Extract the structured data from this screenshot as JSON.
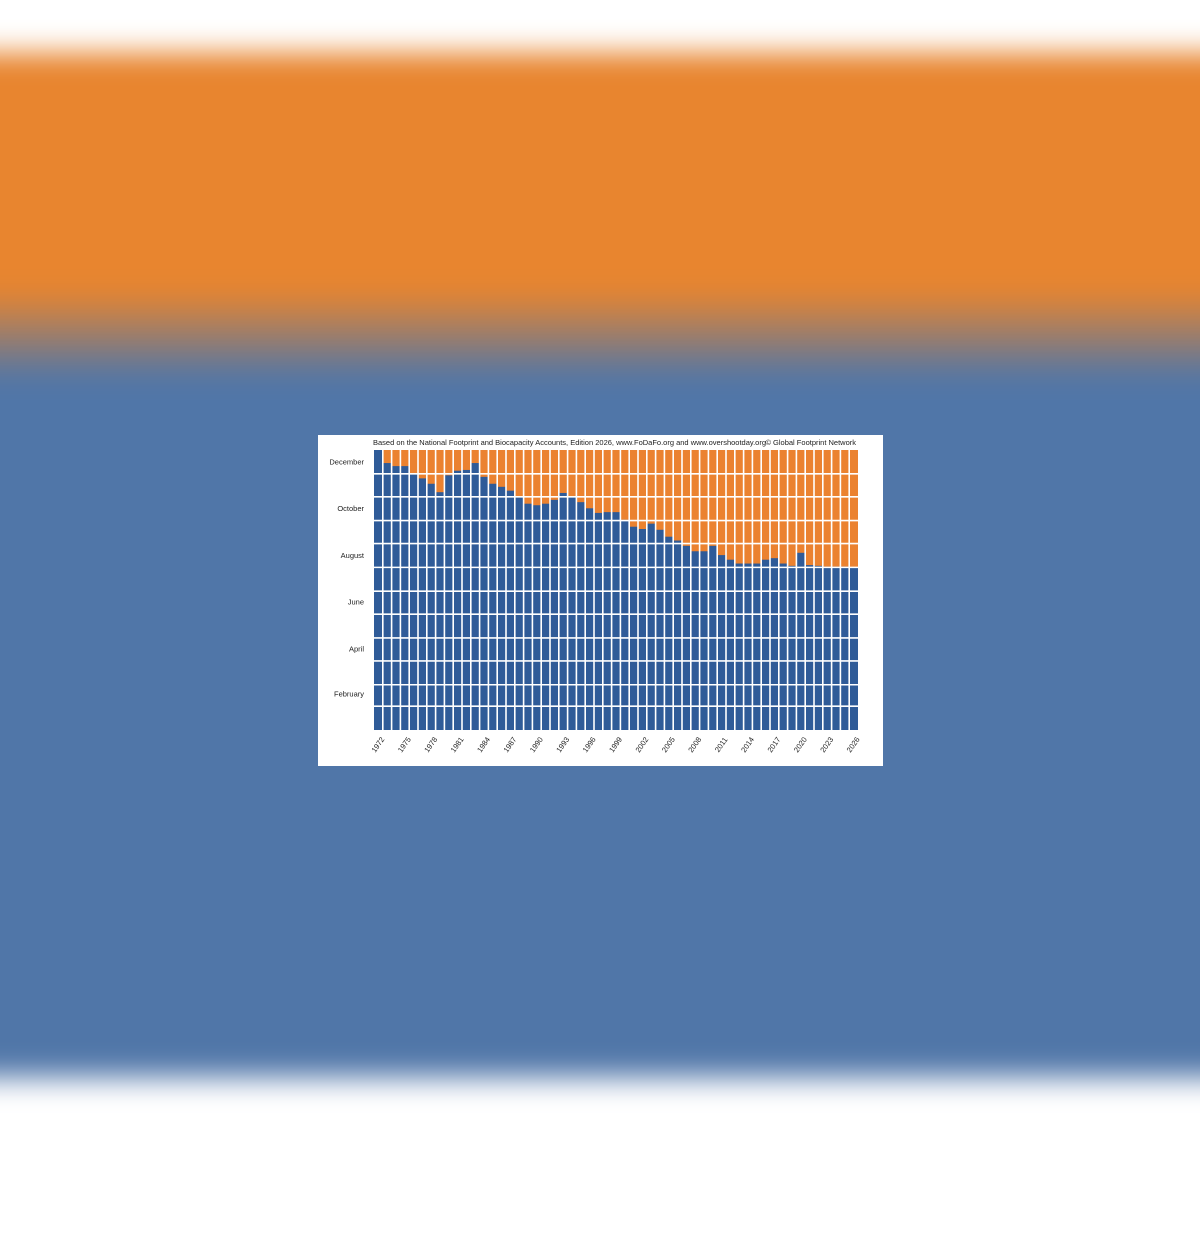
{
  "chart_data": {
    "type": "bar",
    "note_left": "Based on the National Footprint and Biocapacity Accounts, Edition 2026,  www.FoDaFo.org and www.overshootday.org",
    "note_right": "© Global Footprint Network",
    "categories": [
      "1972",
      null,
      null,
      "1975",
      null,
      null,
      "1978",
      null,
      null,
      "1981",
      null,
      null,
      "1984",
      null,
      null,
      "1987",
      null,
      null,
      "1990",
      null,
      null,
      "1993",
      null,
      null,
      "1996",
      null,
      null,
      "1999",
      null,
      null,
      "2002",
      null,
      null,
      "2005",
      null,
      null,
      "2008",
      null,
      null,
      "2011",
      null,
      null,
      "2014",
      null,
      null,
      "2017",
      null,
      null,
      "2020",
      null,
      null,
      "2023",
      null,
      null,
      "2026"
    ],
    "values": [
      365,
      348,
      344,
      344,
      335,
      328,
      321,
      310,
      332,
      338,
      339,
      348,
      330,
      321,
      317,
      312,
      305,
      295,
      293,
      295,
      300,
      309,
      305,
      297,
      289,
      283,
      284,
      284,
      274,
      265,
      262,
      269,
      261,
      252,
      247,
      240,
      233,
      233,
      240,
      228,
      222,
      217,
      217,
      217,
      222,
      224,
      217,
      214,
      231,
      215,
      214,
      213,
      213,
      213,
      212
    ],
    "color": "#2f5b98",
    "remainder_color": "#eb8230",
    "ylim": [
      0,
      365
    ],
    "yticks": [
      {
        "value": 46,
        "label": "February"
      },
      {
        "value": 105,
        "label": "April"
      },
      {
        "value": 166,
        "label": "June"
      },
      {
        "value": 227,
        "label": "August"
      },
      {
        "value": 288,
        "label": "October"
      },
      {
        "value": 349,
        "label": "December"
      }
    ],
    "y_minor_ticks": [
      31,
      59,
      90,
      120,
      151,
      181,
      212,
      243,
      273,
      304,
      334
    ],
    "grid": true
  }
}
